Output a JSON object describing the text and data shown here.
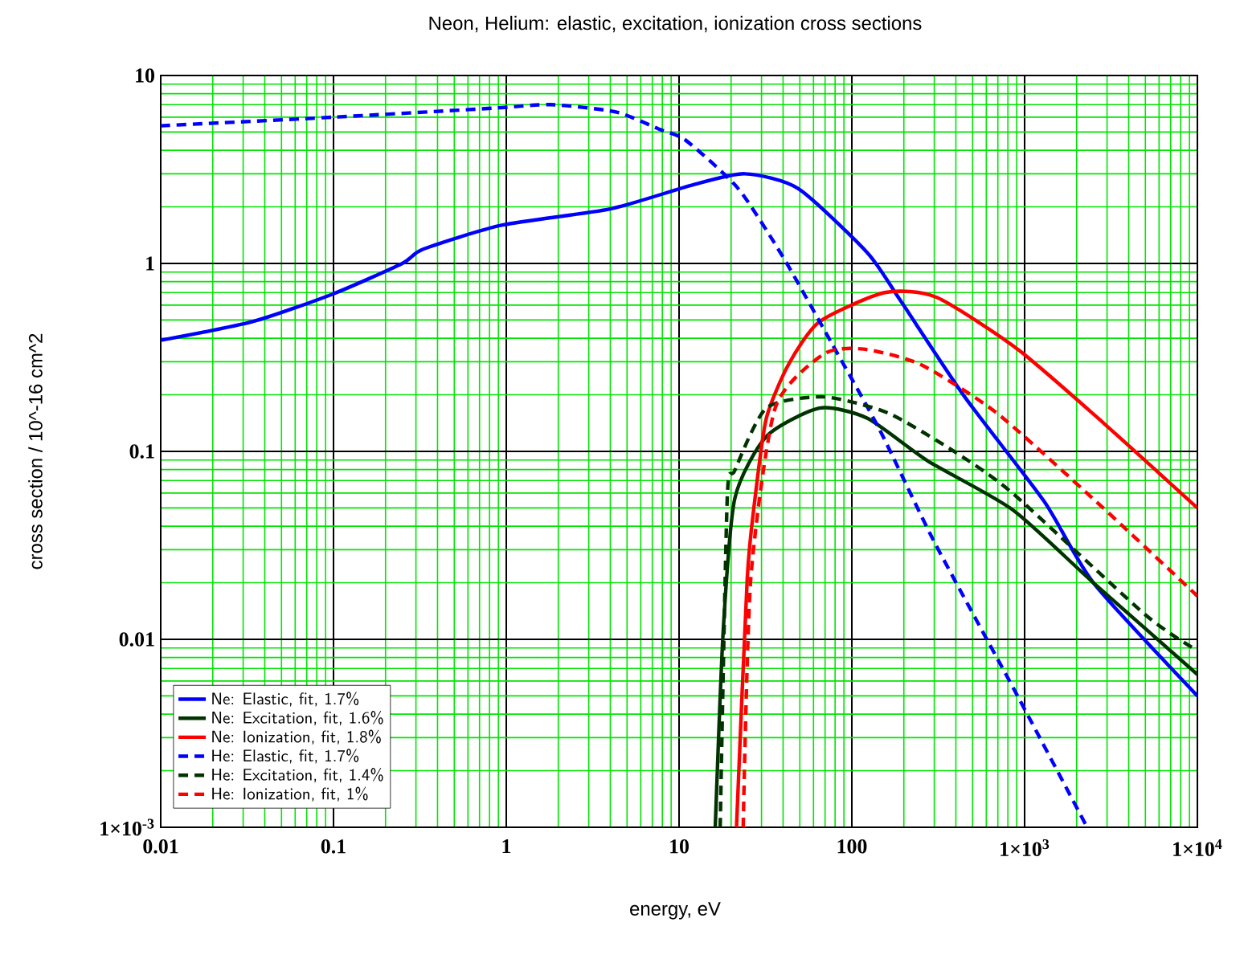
{
  "chart_data": {
    "type": "line",
    "title": "Neon, Helium: elastic, excitation, ionization cross sections",
    "xlabel": "energy, eV",
    "ylabel": "cross section / 10^-16 cm^2",
    "log": "xy",
    "grid": true,
    "legend": "bottom left",
    "xlim": [
      0.01,
      10000
    ],
    "ylim": [
      0.001,
      10
    ],
    "xticks": [
      0.01,
      0.1,
      1,
      10,
      100,
      {
        "value": 1000,
        "label": "1×10$^{3}$"
      },
      {
        "value": 10000,
        "label": "1×10$^{4}$"
      }
    ],
    "yticks": [
      {
        "value": 0.001,
        "label": "1×10$^{-3}$"
      },
      0.01,
      0.1,
      1,
      10
    ],
    "series": [
      {
        "name": "Ne: Elastic, fit, 1.7%",
        "color": "#0000ff",
        "line_style": "solid",
        "x": [
          0.01,
          0.034,
          0.1,
          0.25,
          0.33,
          0.95,
          4,
          11.7,
          24,
          49,
          123,
          190,
          450,
          1300,
          2500,
          10000
        ],
        "values": [
          0.39,
          0.49,
          0.69,
          1.0,
          1.19,
          1.6,
          1.95,
          2.6,
          3.0,
          2.5,
          1.14,
          0.64,
          0.195,
          0.054,
          0.02,
          0.005
        ]
      },
      {
        "name": "Ne: Excitation, fit, 1.6%",
        "color": "#003300",
        "line_style": "solid",
        "x": [
          16.2,
          18,
          21,
          32,
          65,
          123,
          275,
          850,
          2500,
          10000
        ],
        "values": [
          0.001,
          0.011,
          0.056,
          0.12,
          0.17,
          0.15,
          0.089,
          0.049,
          0.02,
          0.0065
        ]
      },
      {
        "name": "Ne: Ionization, fit, 1.8%",
        "color": "#ff0000",
        "line_style": "solid",
        "x": [
          21.5,
          24.8,
          27.5,
          32,
          43,
          65,
          155,
          310,
          910,
          2900,
          10000
        ],
        "values": [
          0.001,
          0.021,
          0.056,
          0.15,
          0.29,
          0.49,
          0.7,
          0.66,
          0.35,
          0.14,
          0.05
        ]
      },
      {
        "name": "He: Elastic, fit, 1.7%",
        "color": "#0000ff",
        "line_style": "dashed",
        "x": [
          0.01,
          0.1,
          0.84,
          1.8,
          4.3,
          7.6,
          11,
          22,
          40,
          76,
          145,
          300,
          910,
          2300
        ],
        "values": [
          5.4,
          6.0,
          6.7,
          7.0,
          6.4,
          5.2,
          4.5,
          2.5,
          1.08,
          0.38,
          0.13,
          0.033,
          0.005,
          0.001
        ]
      },
      {
        "name": "He: Excitation, fit, 1.4%",
        "color": "#003300",
        "line_style": "dashed",
        "x": [
          17.3,
          19,
          21,
          32,
          69,
          162,
          390,
          850,
          5000,
          10000
        ],
        "values": [
          0.001,
          0.056,
          0.079,
          0.17,
          0.195,
          0.16,
          0.1,
          0.06,
          0.0135,
          0.0087
        ]
      },
      {
        "name": "He: Ionization, fit, 1%",
        "color": "#ff0000",
        "line_style": "dashed",
        "x": [
          23.5,
          26,
          36,
          69,
          117,
          250,
          690,
          2600,
          10000
        ],
        "values": [
          0.001,
          0.021,
          0.17,
          0.33,
          0.35,
          0.29,
          0.16,
          0.054,
          0.017
        ]
      }
    ]
  }
}
